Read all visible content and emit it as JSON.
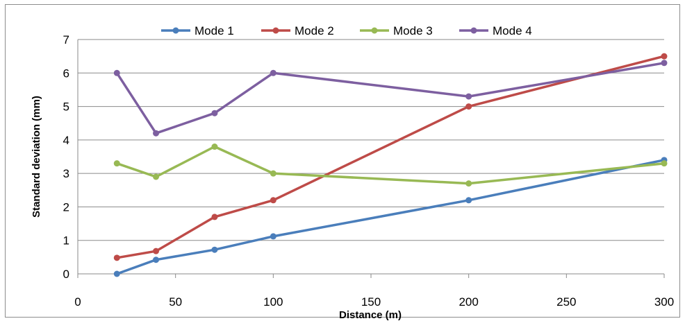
{
  "chart_data": {
    "type": "line",
    "title": "",
    "xlabel": "Distance (m)",
    "ylabel": "Standard deviation (mm)",
    "xlim": [
      0,
      300
    ],
    "ylim": [
      0,
      7
    ],
    "xticks": [
      0,
      50,
      100,
      150,
      200,
      250,
      300
    ],
    "yticks": [
      0,
      1,
      2,
      3,
      4,
      5,
      6,
      7
    ],
    "xtick_labels": [
      "0",
      "50",
      "100",
      "150",
      "200",
      "250",
      "300"
    ],
    "ytick_labels": [
      "0",
      "1",
      "2",
      "3",
      "4",
      "5",
      "6",
      "7"
    ],
    "grid": "horizontal",
    "legend_position": "top",
    "x": [
      20,
      40,
      70,
      100,
      200,
      300
    ],
    "series": [
      {
        "name": "Mode 1",
        "color": "#4a7ebb",
        "values": [
          0.0,
          0.42,
          0.72,
          1.12,
          2.2,
          3.4
        ]
      },
      {
        "name": "Mode 2",
        "color": "#be4b48",
        "values": [
          0.48,
          0.68,
          1.7,
          2.2,
          5.0,
          6.5
        ]
      },
      {
        "name": "Mode 3",
        "color": "#98b954",
        "values": [
          3.3,
          2.9,
          3.8,
          3.0,
          2.7,
          3.3
        ]
      },
      {
        "name": "Mode 4",
        "color": "#7d5fa0",
        "values": [
          6.0,
          4.2,
          4.8,
          6.0,
          5.3,
          6.3
        ]
      }
    ]
  }
}
